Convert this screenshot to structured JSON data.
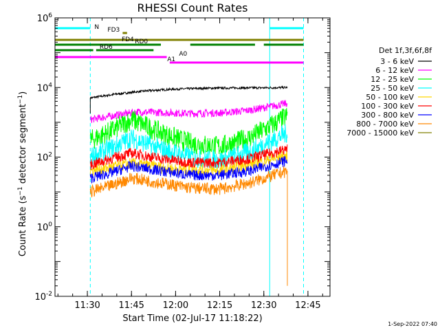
{
  "chart_data": {
    "type": "line",
    "title": "RHESSI Count Rates",
    "xlabel": "Start Time (02-Jul-17 11:18:22)",
    "ylabel_main": "Count Rate (s",
    "ylabel_sup1": "−1",
    "ylabel_mid": " detector segment",
    "ylabel_sup2": "−1",
    "ylabel_end": ")",
    "y_scale": "log",
    "ylim": [
      0.01,
      1000000
    ],
    "xlim": [
      "11:19:00",
      "12:52:30"
    ],
    "x_ticks": [
      "11:30",
      "11:45",
      "12:00",
      "12:15",
      "12:30",
      "12:45"
    ],
    "y_ticks": [
      {
        "value": 0.01,
        "base": "10",
        "exp": "-2"
      },
      {
        "value": 1,
        "base": "10",
        "exp": "0"
      },
      {
        "value": 100,
        "base": "10",
        "exp": "2"
      },
      {
        "value": 10000,
        "base": "10",
        "exp": "4"
      },
      {
        "value": 1000000,
        "base": "10",
        "exp": "6"
      }
    ],
    "legend_title": "Det 1f,3f,6f,8f",
    "legend_position": "right",
    "series": [
      {
        "name": "3 - 6 keV",
        "color": "#000000",
        "x": [
          "11:31:00",
          "11:40:00",
          "11:50:00",
          "12:00:00",
          "12:10:00",
          "12:20:00",
          "12:30:00",
          "12:38:00"
        ],
        "values": [
          5000,
          6500,
          8000,
          9000,
          9500,
          9700,
          9800,
          10000
        ]
      },
      {
        "name": "6 - 12 keV",
        "color": "#ff00ff",
        "x": [
          "11:31:00",
          "11:40:00",
          "11:47:00",
          "11:55:00",
          "12:05:00",
          "12:15:00",
          "12:25:00",
          "12:38:00"
        ],
        "values": [
          1200,
          1600,
          2000,
          1900,
          1800,
          1850,
          2200,
          3500
        ]
      },
      {
        "name": "12 - 25 keV",
        "color": "#00ff00",
        "x": [
          "11:31:00",
          "11:38:00",
          "11:45:00",
          "11:55:00",
          "12:05:00",
          "12:15:00",
          "12:25:00",
          "12:38:00"
        ],
        "values": [
          300,
          550,
          1200,
          500,
          250,
          200,
          350,
          1500
        ]
      },
      {
        "name": "25 - 50 keV",
        "color": "#00ffff",
        "x": [
          "11:31:00",
          "11:38:00",
          "11:45:00",
          "11:55:00",
          "12:05:00",
          "12:15:00",
          "12:25:00",
          "12:38:00"
        ],
        "values": [
          100,
          180,
          350,
          170,
          100,
          80,
          140,
          500
        ]
      },
      {
        "name": "50 - 100 keV",
        "color": "#ffd700",
        "x": [
          "11:31:00",
          "11:45:00",
          "12:00:00",
          "12:15:00",
          "12:38:00"
        ],
        "values": [
          40,
          65,
          45,
          40,
          110
        ]
      },
      {
        "name": "100 - 300 keV",
        "color": "#ff0000",
        "x": [
          "11:31:00",
          "11:38:00",
          "11:45:00",
          "11:55:00",
          "12:05:00",
          "12:15:00",
          "12:25:00",
          "12:38:00"
        ],
        "values": [
          60,
          90,
          130,
          90,
          70,
          70,
          90,
          170
        ]
      },
      {
        "name": "300 - 800 keV",
        "color": "#0000ff",
        "x": [
          "11:31:00",
          "11:38:00",
          "11:45:00",
          "11:55:00",
          "12:05:00",
          "12:15:00",
          "12:25:00",
          "12:38:00"
        ],
        "values": [
          25,
          35,
          55,
          40,
          30,
          30,
          40,
          80
        ]
      },
      {
        "name": "800 - 7000 keV",
        "color": "#ff8800",
        "x": [
          "11:31:00",
          "11:38:00",
          "11:45:00",
          "11:55:00",
          "12:05:00",
          "12:15:00",
          "12:25:00",
          "12:38:00"
        ],
        "values": [
          10,
          15,
          25,
          18,
          13,
          12,
          18,
          40
        ]
      },
      {
        "name": "7000 - 15000 keV",
        "color": "#808000",
        "x": [],
        "values": []
      }
    ],
    "attenuator_bars": [
      {
        "label": "N",
        "color": "#00ffff",
        "segments": [
          [
            "11:19:00",
            "11:31:00"
          ],
          [
            "12:32:00",
            "12:43:30"
          ]
        ]
      },
      {
        "label": "FD3",
        "color": "#808000",
        "segments": [
          [
            "11:42:00",
            "11:43:30"
          ]
        ]
      },
      {
        "label": "FD4",
        "color": "#808000",
        "segments": [
          [
            "11:19:00",
            "12:43:30"
          ]
        ]
      },
      {
        "label": "RD0",
        "color": "#008000",
        "segments": [
          [
            "11:19:00",
            "11:55:00"
          ],
          [
            "12:05:00",
            "12:27:00"
          ],
          [
            "12:30:00",
            "12:43:30"
          ]
        ]
      },
      {
        "label": "RD6",
        "color": "#008000",
        "segments": [
          [
            "11:19:00",
            "11:32:00"
          ],
          [
            "11:33:00",
            "11:52:30"
          ]
        ]
      },
      {
        "label": "A0",
        "color": "#ff00ff",
        "segments": [
          [
            "11:19:00",
            "11:57:00"
          ]
        ]
      },
      {
        "label": "A1",
        "color": "#ff00ff",
        "segments": [
          [
            "11:58:00",
            "12:43:30"
          ]
        ]
      }
    ],
    "eclipse_lines": {
      "solid": [
        "11:19:00",
        "12:32:00"
      ],
      "dashed": [
        "11:31:00",
        "12:43:30"
      ],
      "color": "#00ffff"
    }
  },
  "footer_timestamp": "1-Sep-2022 07:40"
}
